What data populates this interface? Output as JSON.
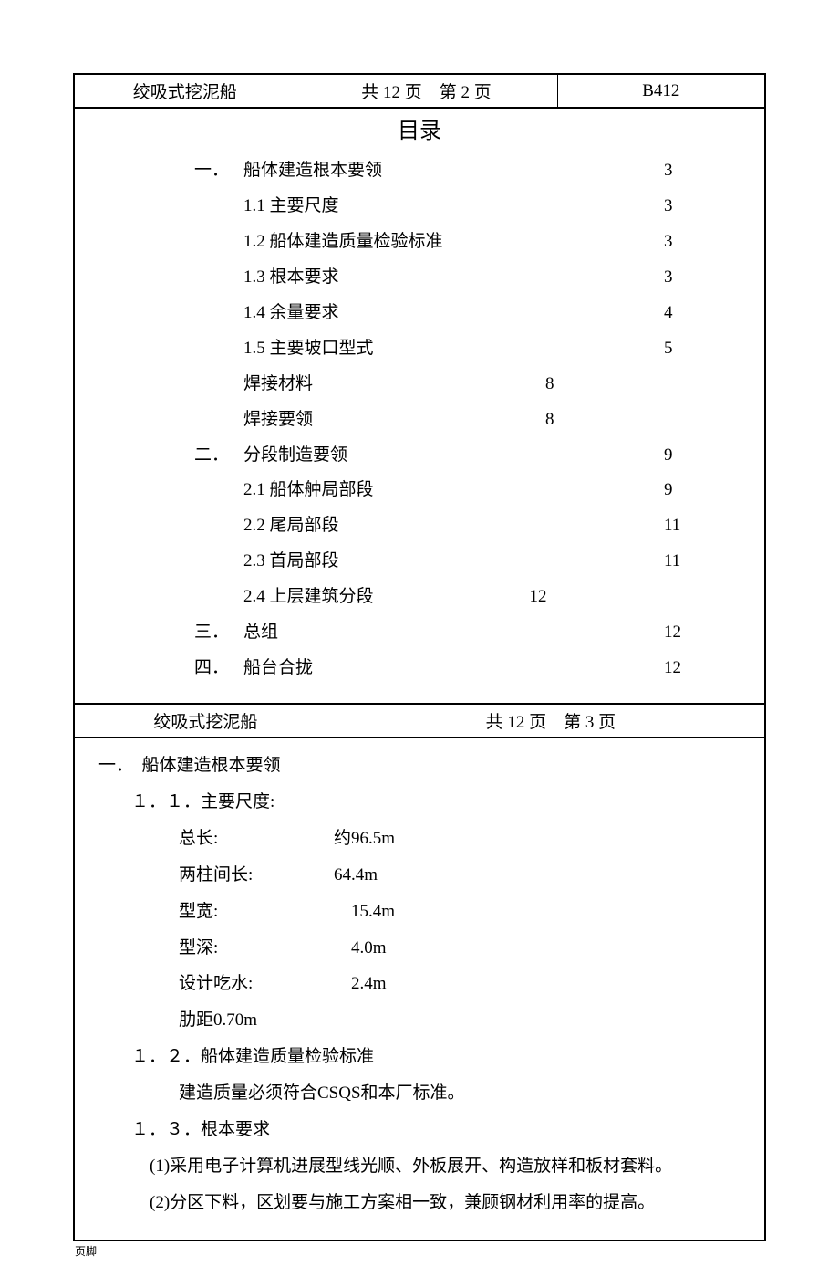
{
  "header1": {
    "c1": "绞吸式挖泥船",
    "c2": "共 12 页　第 2 页",
    "c3": "B412"
  },
  "toc_title": "目录",
  "toc": [
    {
      "num": "一．",
      "label": "船体建造根本要领",
      "page": "3",
      "cls": ""
    },
    {
      "num": "",
      "label": "1.1  主要尺度",
      "page": "3",
      "cls": ""
    },
    {
      "num": "",
      "label": "1.2  船体建造质量检验标准",
      "page": "3",
      "cls": ""
    },
    {
      "num": "",
      "label": "1.3  根本要求",
      "page": "3",
      "cls": ""
    },
    {
      "num": "",
      "label": "1.4  余量要求",
      "page": "4",
      "cls": ""
    },
    {
      "num": "",
      "label": "1.5  主要坡口型式",
      "page": "5",
      "cls": ""
    },
    {
      "num": "",
      "label": " 焊接材料",
      "page": "8",
      "cls": "alt"
    },
    {
      "num": "",
      "label": " 焊接要领",
      "page": "8",
      "cls": "alt"
    },
    {
      "num": "二．",
      "label": "分段制造要领",
      "page": "9",
      "cls": ""
    },
    {
      "num": "",
      "label": "2.1  船体舯局部段",
      "page": "9",
      "cls": ""
    },
    {
      "num": "",
      "label": "2.2  尾局部段",
      "page": "11",
      "cls": ""
    },
    {
      "num": "",
      "label": "2.3  首局部段",
      "page": "11",
      "cls": ""
    },
    {
      "num": "",
      "label": "2.4  上层建筑分段　　　　　　　　　12",
      "page": "",
      "cls": ""
    },
    {
      "num": "三．",
      "label": " 总组",
      "page": "12",
      "cls": ""
    },
    {
      "num": "四．",
      "label": " 船台合拢",
      "page": "12",
      "cls": ""
    }
  ],
  "header2": {
    "c1": "绞吸式挖泥船",
    "c2": "共 12 页　第 3 页"
  },
  "body": {
    "s1_title": "一．　船体建造根本要领",
    "s11_title": "１．１．主要尺度:",
    "dims": [
      {
        "label": "总长:",
        "val": "　　约96.5m"
      },
      {
        "label": "两柱间长:",
        "val": "　　64.4m"
      },
      {
        "label": "型宽:",
        "val": "　　　15.4m"
      },
      {
        "label": "型深:",
        "val": "　　　4.0m"
      },
      {
        "label": "设计吃水:",
        "val": "　　　2.4m"
      },
      {
        "label": "肋距0.70m",
        "val": ""
      }
    ],
    "s12_title": "１．２．船体建造质量检验标准",
    "s12_text": "建造质量必须符合CSQS和本厂标准。",
    "s13_title": "１．３．根本要求",
    "s13_1": "(1)采用电子计算机进展型线光顺、外板展开、构造放样和板材套料。",
    "s13_2": "(2)分区下料，区划要与施工方案相一致，兼顾钢材利用率的提高。"
  },
  "footer": "页脚"
}
